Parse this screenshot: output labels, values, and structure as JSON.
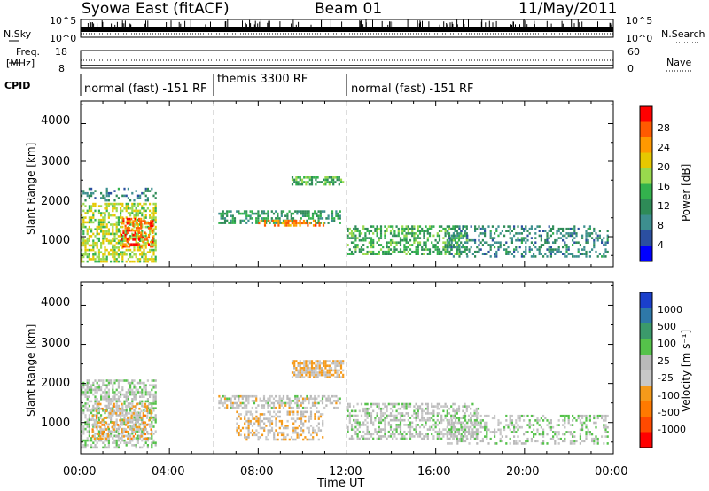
{
  "header": {
    "station": "Syowa East (fitACF)",
    "beam": "Beam 01",
    "date": "11/May/2011"
  },
  "panels": {
    "nsky_label": "N.Sky",
    "nsky_hi": "10^5",
    "nsky_lo": "10^0",
    "nsearch_label": "N.Search",
    "nsearch_hi": "10^5",
    "nsearch_lo": "10^0",
    "freq_label": "Freq.",
    "freq_unit": "[MHz]",
    "freq_hi": "18",
    "freq_lo": "8",
    "nave_label": "Nave",
    "nave_hi": "60",
    "nave_lo": "0",
    "cpid_label": "CPID",
    "cpid_modes": [
      {
        "label": "normal (fast) -151 RF",
        "start_hour": 0,
        "end_hour": 6
      },
      {
        "label": "themis 3300 RF",
        "start_hour": 6,
        "end_hour": 12
      },
      {
        "label": "normal (fast) -151 RF",
        "start_hour": 12,
        "end_hour": 24
      }
    ]
  },
  "axes": {
    "x_ticks": [
      "00:00",
      "04:00",
      "08:00",
      "12:00",
      "16:00",
      "20:00",
      "00:00"
    ],
    "x_label": "Time UT",
    "y_ticks": [
      "1000",
      "2000",
      "3000",
      "4000"
    ],
    "y_label": "Slant Range [km]"
  },
  "colorbars": {
    "power": {
      "label": "Power [dB]",
      "ticks": [
        "28",
        "24",
        "20",
        "16",
        "12",
        "8",
        "4"
      ],
      "colors": [
        "#ff0000",
        "#ff5a00",
        "#ff9900",
        "#e6c800",
        "#99d94d",
        "#33b24d",
        "#2e8b57",
        "#3d8f8f",
        "#2b4fa0",
        "#0000ff"
      ]
    },
    "velocity": {
      "label": "Velocity [m s⁻¹]",
      "ticks": [
        "1000",
        "500",
        "100",
        "25",
        "-25",
        "-100",
        "-500",
        "-1000"
      ],
      "colors": [
        "#1a3fcc",
        "#2e78a8",
        "#3b9a6b",
        "#55c24a",
        "#b9b9b9",
        "#c8c8c8",
        "#f59a1a",
        "#ff7a00",
        "#ff4a00",
        "#ff0000"
      ]
    }
  },
  "chart_data": {
    "type": "heatmap",
    "title": "Syowa East (fitACF) Beam 01 11/May/2011",
    "xlabel": "Time UT",
    "ylabel": "Slant Range [km]",
    "xlim_hours": [
      0,
      24
    ],
    "ylim_km": [
      200,
      4600
    ],
    "panels": [
      {
        "name": "Power",
        "unit": "dB",
        "colorbar_range": [
          2,
          30
        ],
        "regions": [
          {
            "t": [
              0.0,
              3.5
            ],
            "r": [
              300,
              1900
            ],
            "value": 18,
            "density": 0.55
          },
          {
            "t": [
              1.8,
              3.3
            ],
            "r": [
              700,
              1500
            ],
            "value": 26,
            "density": 0.5
          },
          {
            "t": [
              0.0,
              3.5
            ],
            "r": [
              1900,
              2300
            ],
            "value": 10,
            "density": 0.25
          },
          {
            "t": [
              6.2,
              11.8
            ],
            "r": [
              1300,
              1700
            ],
            "value": 12,
            "density": 0.55
          },
          {
            "t": [
              8.0,
              11.0
            ],
            "r": [
              1250,
              1450
            ],
            "value": 24,
            "density": 0.5
          },
          {
            "t": [
              9.5,
              11.9
            ],
            "r": [
              2300,
              2600
            ],
            "value": 14,
            "density": 0.6
          },
          {
            "t": [
              12.0,
              17.5
            ],
            "r": [
              500,
              1300
            ],
            "value": 14,
            "density": 0.5
          },
          {
            "t": [
              16.5,
              23.8
            ],
            "r": [
              400,
              1300
            ],
            "value": 10,
            "density": 0.35
          }
        ]
      },
      {
        "name": "Velocity",
        "unit": "m/s",
        "colorbar_range": [
          -1000,
          1000
        ],
        "regions": [
          {
            "t": [
              0.0,
              3.5
            ],
            "r": [
              300,
              2100
            ],
            "value": 100,
            "density": 0.55
          },
          {
            "t": [
              0.5,
              3.3
            ],
            "r": [
              500,
              1500
            ],
            "value": -200,
            "density": 0.4
          },
          {
            "t": [
              6.2,
              11.8
            ],
            "r": [
              1300,
              1700
            ],
            "value": 0,
            "density": 0.55
          },
          {
            "t": [
              7.0,
              11.0
            ],
            "r": [
              500,
              1300
            ],
            "value": -100,
            "density": 0.45
          },
          {
            "t": [
              9.5,
              11.9
            ],
            "r": [
              2100,
              2600
            ],
            "value": -150,
            "density": 0.75
          },
          {
            "t": [
              12.0,
              18.0
            ],
            "r": [
              500,
              1500
            ],
            "value": 80,
            "density": 0.5
          },
          {
            "t": [
              16.5,
              23.8
            ],
            "r": [
              400,
              1200
            ],
            "value": 100,
            "density": 0.35
          }
        ]
      }
    ]
  }
}
